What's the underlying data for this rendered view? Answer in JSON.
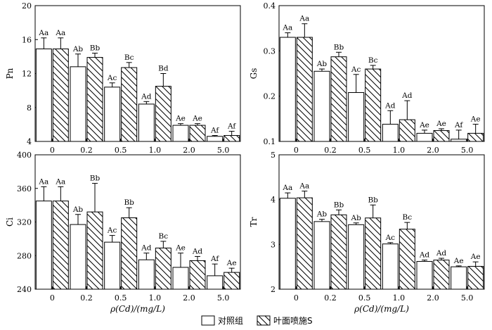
{
  "legend": {
    "control_label": "对照组",
    "spray_label": "叶面喷施S"
  },
  "chart_data": [
    {
      "type": "bar",
      "panel": "top-left",
      "ylabel": "Pn",
      "xlabel": "",
      "ylim": [
        4,
        20
      ],
      "yticks": [
        "4",
        "8",
        "12",
        "16",
        "20"
      ],
      "categories": [
        "0",
        "0.2",
        "0.5",
        "1.0",
        "2.0",
        "5.0"
      ],
      "series": [
        {
          "name": "对照组",
          "values": [
            14.9,
            12.8,
            10.4,
            8.4,
            5.9,
            4.6
          ],
          "errors": [
            1.3,
            1.5,
            0.5,
            0.3,
            0.2,
            0.1
          ],
          "labels": [
            "Aa",
            "Ab",
            "Ac",
            "Ad",
            "Ae",
            "Af"
          ]
        },
        {
          "name": "叶面喷施S",
          "values": [
            14.9,
            13.9,
            12.7,
            10.5,
            5.9,
            4.7
          ],
          "errors": [
            1.3,
            0.5,
            0.6,
            1.5,
            0.2,
            0.5
          ],
          "labels": [
            "Aa",
            "Bb",
            "Bc",
            "Bd",
            "Ae",
            "Af"
          ]
        }
      ]
    },
    {
      "type": "bar",
      "panel": "top-right",
      "ylabel": "Gs",
      "xlabel": "",
      "ylim": [
        0.1,
        0.4
      ],
      "yticks": [
        "0.1",
        "0.2",
        "0.3",
        "0.4"
      ],
      "categories": [
        "0",
        "0.2",
        "0.5",
        "1.0",
        "2.0",
        "5.0"
      ],
      "series": [
        {
          "name": "对照组",
          "values": [
            0.33,
            0.255,
            0.208,
            0.138,
            0.118,
            0.105
          ],
          "errors": [
            0.01,
            0.005,
            0.04,
            0.03,
            0.007,
            0.02
          ],
          "labels": [
            "Aa",
            "Ab",
            "Ac",
            "Ad",
            "Ae",
            "Af"
          ]
        },
        {
          "name": "叶面喷施S",
          "values": [
            0.33,
            0.287,
            0.26,
            0.148,
            0.124,
            0.118
          ],
          "errors": [
            0.03,
            0.01,
            0.008,
            0.042,
            0.004,
            0.02
          ],
          "labels": [
            "Aa",
            "Bb",
            "Bc",
            "Ad",
            "Ae",
            "Ae"
          ]
        }
      ]
    },
    {
      "type": "bar",
      "panel": "bottom-left",
      "ylabel": "Ci",
      "xlabel": "ρ(Cd)/(mg/L)",
      "ylim": [
        240,
        400
      ],
      "yticks": [
        "240",
        "280",
        "320",
        "360",
        "400"
      ],
      "categories": [
        "0",
        "0.2",
        "0.5",
        "1.0",
        "2.0",
        "5.0"
      ],
      "series": [
        {
          "name": "对照组",
          "values": [
            345,
            317,
            296,
            275,
            266,
            256
          ],
          "errors": [
            17,
            12,
            8,
            8,
            17,
            14
          ],
          "labels": [
            "Aa",
            "Ab",
            "Ac",
            "Ad",
            "Ae",
            "Af"
          ]
        },
        {
          "name": "叶面喷施S",
          "values": [
            345,
            332,
            325,
            289,
            274,
            260
          ],
          "errors": [
            17,
            34,
            12,
            8,
            5,
            5
          ],
          "labels": [
            "Aa",
            "Bb",
            "Bb",
            "Bc",
            "Ad",
            "Ae"
          ]
        }
      ]
    },
    {
      "type": "bar",
      "panel": "bottom-right",
      "ylabel": "Tr",
      "xlabel": "ρ(Cd)/(mg/L)",
      "ylim": [
        2,
        5
      ],
      "yticks": [
        "2",
        "3",
        "4",
        "5"
      ],
      "categories": [
        "0",
        "0.2",
        "0.5",
        "1.0",
        "2.0",
        "5.0"
      ],
      "series": [
        {
          "name": "对照组",
          "values": [
            4.03,
            3.51,
            3.44,
            3.01,
            2.62,
            2.5
          ],
          "errors": [
            0.12,
            0.05,
            0.04,
            0.03,
            0.03,
            0.02
          ],
          "labels": [
            "Aa",
            "Ab",
            "Ab",
            "Ac",
            "Ad",
            "Ae"
          ]
        },
        {
          "name": "叶面喷施S",
          "values": [
            4.04,
            3.66,
            3.59,
            3.34,
            2.65,
            2.51
          ],
          "errors": [
            0.15,
            0.11,
            0.29,
            0.15,
            0.04,
            0.1
          ],
          "labels": [
            "Aa",
            "Bb",
            "Bb",
            "Bc",
            "Ad",
            "Ae"
          ]
        }
      ]
    }
  ]
}
